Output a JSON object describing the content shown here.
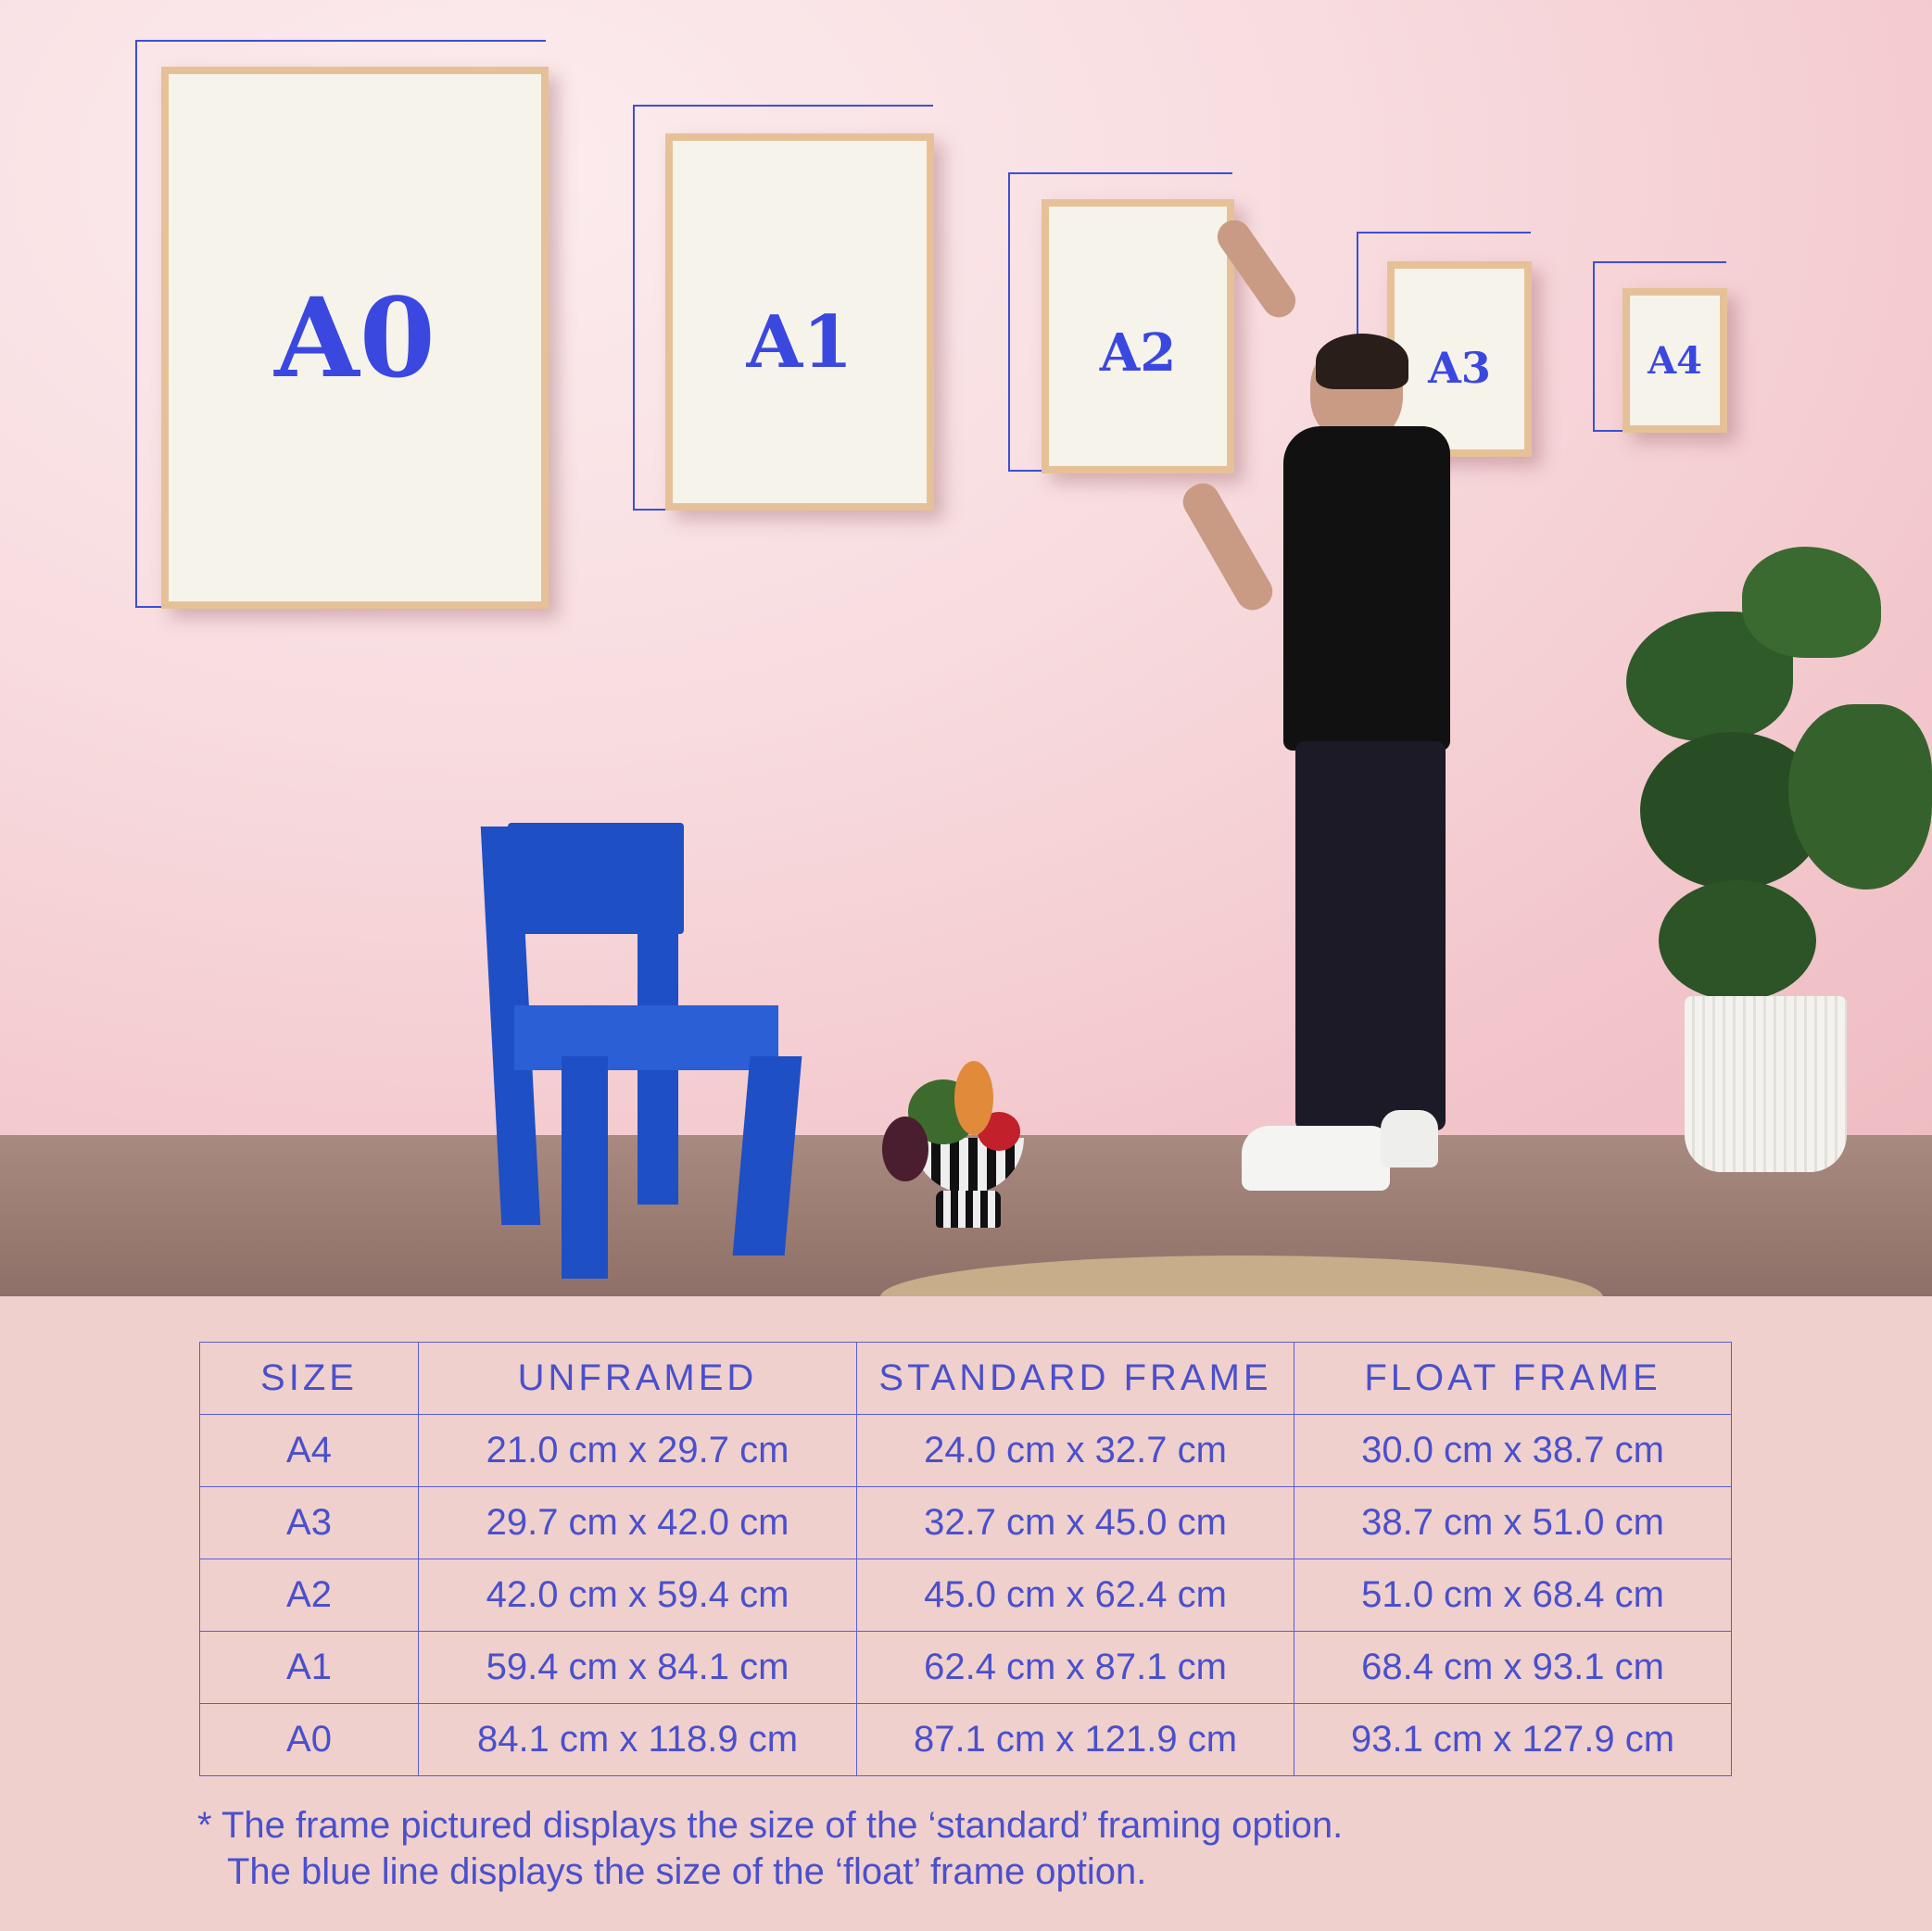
{
  "frames": [
    {
      "label": "A0"
    },
    {
      "label": "A1"
    },
    {
      "label": "A2"
    },
    {
      "label": "A3"
    },
    {
      "label": "A4"
    }
  ],
  "table": {
    "headers": [
      "SIZE",
      "UNFRAMED",
      "STANDARD FRAME",
      "FLOAT FRAME"
    ],
    "rows": [
      [
        "A4",
        "21.0 cm x 29.7 cm",
        "24.0 cm x 32.7 cm",
        "30.0 cm x 38.7 cm"
      ],
      [
        "A3",
        "29.7 cm x 42.0 cm",
        "32.7 cm x 45.0 cm",
        "38.7 cm x 51.0 cm"
      ],
      [
        "A2",
        "42.0 cm x 59.4 cm",
        "45.0 cm x 62.4 cm",
        "51.0 cm x 68.4 cm"
      ],
      [
        "A1",
        "59.4 cm x 84.1 cm",
        "62.4 cm x 87.1 cm",
        "68.4 cm x 93.1 cm"
      ],
      [
        "A0",
        "84.1 cm x 118.9 cm",
        "87.1 cm x 121.9 cm",
        "93.1 cm x 127.9 cm"
      ]
    ]
  },
  "footnote": {
    "line1": "* The frame pictured displays the size of the ‘standard’ framing option.",
    "line2": "The blue line displays the size of the ‘float’ frame option."
  },
  "colors": {
    "accent": "#3a48e0",
    "wall": "#f5d4d8",
    "panel": "#efd0cd",
    "frame_wood": "#e6c198",
    "chair": "#1e4fc4"
  }
}
